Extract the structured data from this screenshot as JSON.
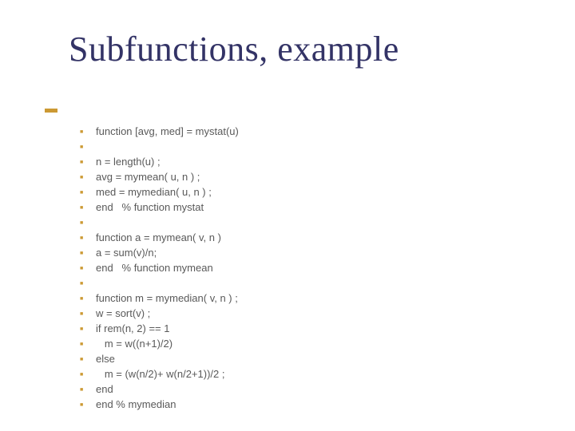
{
  "title": "Subfunctions, example",
  "title_color": "#333366",
  "title_fontsize": 44,
  "accent_color": "#cc9933",
  "text_color": "#595959",
  "bullet_color": "#cc9933",
  "line_fontsize": 13,
  "background_color": "#ffffff",
  "lines": [
    "function [avg, med] = mystat(u)",
    "",
    "n = length(u) ;",
    "avg = mymean( u, n ) ;",
    "med = mymedian( u, n ) ;",
    "end   % function mystat",
    "",
    "function a = mymean( v, n )",
    "a = sum(v)/n;",
    "end   % function mymean",
    "",
    "function m = mymedian( v, n ) ;",
    "w = sort(v) ;",
    "if rem(n, 2) == 1",
    "   m = w((n+1)/2)",
    "else",
    "   m = (w(n/2)+ w(n/2+1))/2 ;",
    "end",
    "end % mymedian"
  ]
}
